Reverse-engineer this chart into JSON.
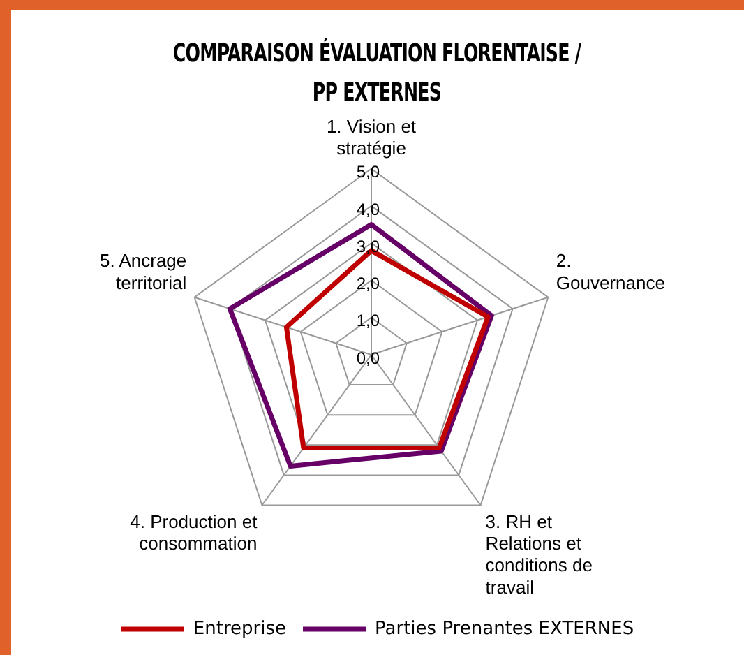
{
  "chart_data": {
    "type": "radar",
    "title": "COMPARAISON ÉVALUATION FLORENTAISE / PP EXTERNES",
    "categories": [
      "1. Vision et stratégie",
      "2. Gouvernance",
      "3. RH et Relations et conditions de travail",
      "4. Production et consommation",
      "5. Ancrage territorial"
    ],
    "series": [
      {
        "name": "Entreprise",
        "color": "#c00000",
        "values": [
          2.8,
          3.3,
          3.1,
          3.1,
          2.4
        ]
      },
      {
        "name": "Parties Prenantes EXTERNES",
        "color": "#660066",
        "values": [
          3.5,
          3.4,
          3.2,
          3.7,
          4.0
        ]
      }
    ],
    "ylim": [
      0,
      5
    ],
    "yticks": [
      {
        "value": 0,
        "label": "0,0"
      },
      {
        "value": 1,
        "label": "1,0"
      },
      {
        "value": 2,
        "label": "2,0"
      },
      {
        "value": 3,
        "label": "3,0"
      },
      {
        "value": 4,
        "label": "4,0"
      },
      {
        "value": 5,
        "label": "5,0"
      }
    ],
    "grid": true,
    "legend": "bottom",
    "marker": "none",
    "line_style": "solid"
  }
}
